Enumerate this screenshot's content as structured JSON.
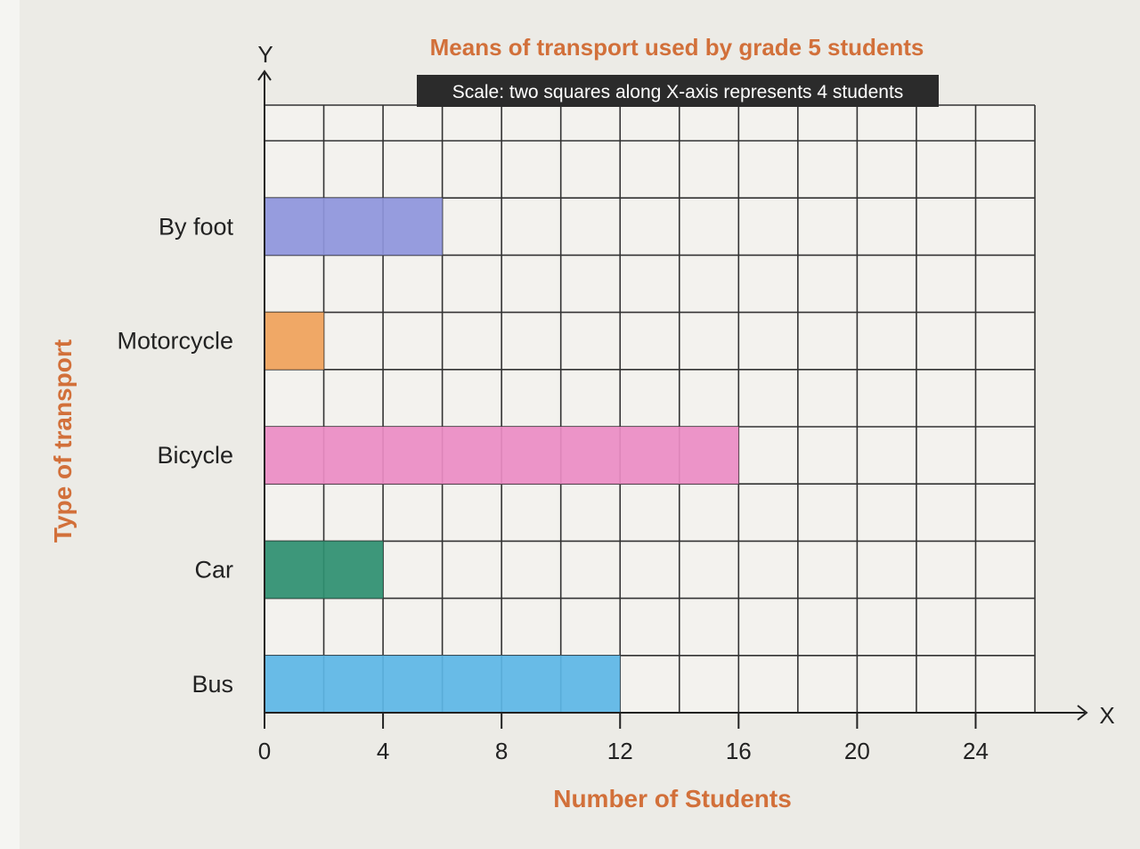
{
  "chart_data": {
    "type": "bar",
    "orientation": "horizontal",
    "title": "Means of transport used by grade 5 students",
    "scale_note": "Scale: two squares along X-axis represents 4 students",
    "xlabel": "Number of Students",
    "ylabel": "Type of transport",
    "x_axis_letter": "X",
    "y_axis_letter": "Y",
    "xlim": [
      0,
      26
    ],
    "x_ticks": [
      0,
      4,
      8,
      12,
      16,
      20,
      24
    ],
    "grid": true,
    "categories": [
      "By foot",
      "Motorcycle",
      "Bicycle",
      "Car",
      "Bus"
    ],
    "values": [
      6,
      2,
      16,
      4,
      12
    ],
    "colors": [
      "#8e95dc",
      "#f0a25a",
      "#ec8cc4",
      "#2e8f70",
      "#5cb6e6"
    ]
  }
}
